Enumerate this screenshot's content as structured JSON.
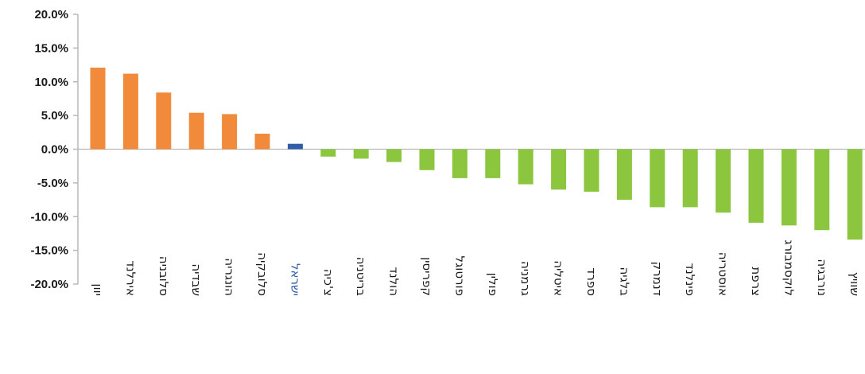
{
  "chart_data": {
    "type": "bar",
    "title": "",
    "xlabel": "",
    "ylabel": "",
    "ylim": [
      -20,
      20
    ],
    "ytick_step": 5,
    "yticks": [
      "20.0%",
      "15.0%",
      "10.0%",
      "5.0%",
      "0.0%",
      "-5.0%",
      "-10.0%",
      "-15.0%",
      "-20.0%"
    ],
    "grid": false,
    "categories": [
      "יוון",
      "אירלנד",
      "סלובניה",
      "שבדיה",
      "הונגריה",
      "סלובקיה",
      "ישראל",
      "צ'כיה",
      "בריטניה",
      "הולנד",
      "קפריסין",
      "פורטוגל",
      "פולין",
      "גרמניה",
      "איטליה",
      "ספרד",
      "בלגיה",
      "דנמרק",
      "פינלנד",
      "אוסטריה",
      "צרפת",
      "לוקסמבורג",
      "נורבגיה",
      "שוויץ"
    ],
    "values": [
      12.1,
      11.2,
      8.4,
      5.4,
      5.2,
      2.3,
      0.8,
      -1.1,
      -1.4,
      -1.9,
      -3.1,
      -4.3,
      -4.3,
      -5.2,
      -6.0,
      -6.3,
      -7.5,
      -8.6,
      -8.6,
      -9.4,
      -10.9,
      -11.3,
      -12.0,
      -13.4
    ],
    "colors": {
      "positive": "#f28a3c",
      "highlight": "#2f5da8",
      "negative": "#8cc63f",
      "highlight_label": "#2f5da8",
      "axis": "#b8b8b8"
    },
    "highlight_index": 6
  }
}
